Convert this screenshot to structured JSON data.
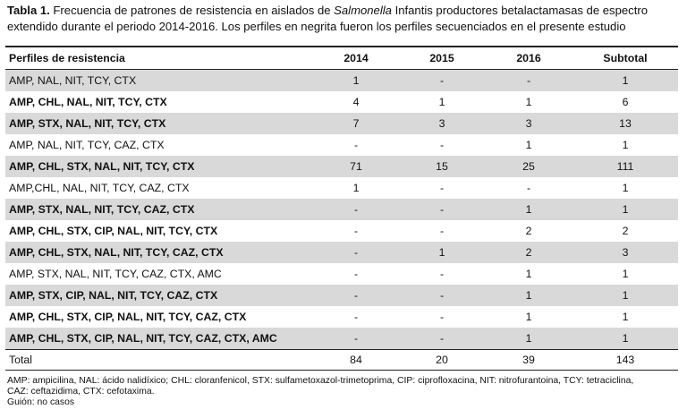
{
  "caption": {
    "label": "Tabla 1.",
    "before_italic": " Frecuencia de patrones de resistencia en aislados de ",
    "italic": "Salmonella",
    "after_italic": " Infantis productores betalactamasas de espectro extendido durante el periodo 2014-2016. Los perfiles en negrita fueron los perfiles secuenciados en el presente estudio"
  },
  "table": {
    "headers": [
      "Perfiles de resistencia",
      "2014",
      "2015",
      "2016",
      "Subtotal"
    ],
    "rows": [
      {
        "profile": "AMP, NAL, NIT, TCY, CTX",
        "v2014": "1",
        "v2015": "-",
        "v2016": "-",
        "subtotal": "1",
        "bold": false,
        "shaded": true
      },
      {
        "profile": "AMP, CHL, NAL, NIT, TCY, CTX",
        "v2014": "4",
        "v2015": "1",
        "v2016": "1",
        "subtotal": "6",
        "bold": true,
        "shaded": false
      },
      {
        "profile": "AMP, STX, NAL, NIT, TCY, CTX",
        "v2014": "7",
        "v2015": "3",
        "v2016": "3",
        "subtotal": "13",
        "bold": true,
        "shaded": true
      },
      {
        "profile": "AMP, NAL, NIT, TCY, CAZ, CTX",
        "v2014": "-",
        "v2015": "-",
        "v2016": "1",
        "subtotal": "1",
        "bold": false,
        "shaded": false
      },
      {
        "profile": "AMP, CHL, STX, NAL, NIT, TCY, CTX",
        "v2014": "71",
        "v2015": "15",
        "v2016": "25",
        "subtotal": "111",
        "bold": true,
        "shaded": true
      },
      {
        "profile": "AMP,CHL, NAL, NIT, TCY, CAZ, CTX",
        "v2014": "1",
        "v2015": "-",
        "v2016": "-",
        "subtotal": "1",
        "bold": false,
        "shaded": false
      },
      {
        "profile": "AMP, STX, NAL, NIT, TCY, CAZ, CTX",
        "v2014": "-",
        "v2015": "-",
        "v2016": "1",
        "subtotal": "1",
        "bold": true,
        "shaded": true
      },
      {
        "profile": "AMP, CHL, STX, CIP, NAL, NIT, TCY, CTX",
        "v2014": "-",
        "v2015": "-",
        "v2016": "2",
        "subtotal": "2",
        "bold": true,
        "shaded": false
      },
      {
        "profile": "AMP, CHL, STX, NAL, NIT, TCY, CAZ, CTX",
        "v2014": "-",
        "v2015": "1",
        "v2016": "2",
        "subtotal": "3",
        "bold": true,
        "shaded": true
      },
      {
        "profile": "AMP, STX, NAL, NIT, TCY, CAZ, CTX, AMC",
        "v2014": "-",
        "v2015": "-",
        "v2016": "1",
        "subtotal": "1",
        "bold": false,
        "shaded": false
      },
      {
        "profile": "AMP, STX, CIP, NAL, NIT, TCY, CAZ, CTX",
        "v2014": "-",
        "v2015": "-",
        "v2016": "1",
        "subtotal": "1",
        "bold": true,
        "shaded": true
      },
      {
        "profile": "AMP, CHL, STX, CIP, NAL, NIT, TCY, CAZ, CTX",
        "v2014": "-",
        "v2015": "-",
        "v2016": "1",
        "subtotal": "1",
        "bold": true,
        "shaded": false
      },
      {
        "profile": "AMP, CHL, STX, CIP, NAL, NIT, TCY, CAZ, CTX, AMC",
        "v2014": "-",
        "v2015": "-",
        "v2016": "1",
        "subtotal": "1",
        "bold": true,
        "shaded": true
      }
    ],
    "total": {
      "label": "Total",
      "v2014": "84",
      "v2015": "20",
      "v2016": "39",
      "subtotal": "143"
    }
  },
  "footnotes": [
    "AMP: ampicilina, NAL: ácido nalidíxico; CHL: cloranfenicol, STX: sulfametoxazol-trimetoprima, CIP: ciprofloxacina, NIT: nitrofurantoina, TCY: tetraciclina,",
    "CAZ: ceftazidima, CTX: cefotaxima.",
    "Guión: no casos"
  ],
  "colors": {
    "shaded_row": "#d9d9d9",
    "rules": "#222222"
  }
}
